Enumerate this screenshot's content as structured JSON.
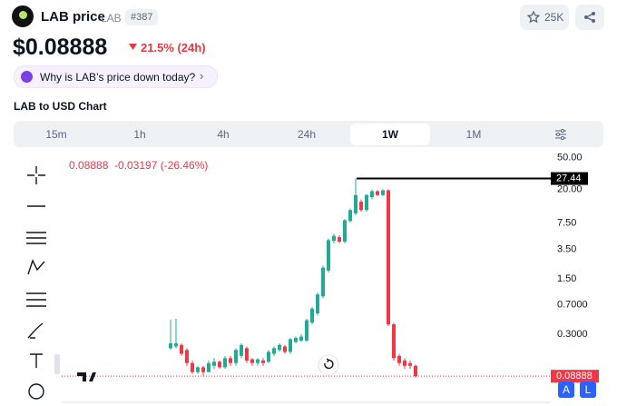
{
  "header": {
    "name": "LAB price",
    "symbol": "LAB",
    "rank": "#387",
    "watchlist": "25K"
  },
  "price": "$0.08888",
  "change": "21.5% (24h)",
  "prompt": "Why is LAB’s price down today?",
  "chart_title": "LAB to USD Chart",
  "tabs": [
    "15m",
    "1h",
    "4h",
    "24h",
    "1W",
    "1M"
  ],
  "active_tab": "1W",
  "ohlc_header": {
    "last": "0.08888",
    "change": "-0.03197 (-26.46%)"
  },
  "scale_buttons": [
    "A",
    "L"
  ],
  "chart_data": {
    "type": "candlestick",
    "log_scale": true,
    "up_color": "#22ab94",
    "down_color": "#f23645",
    "ylim": [
      0.045,
      63
    ],
    "yticks": [
      {
        "value": 50,
        "label": "50.00"
      },
      {
        "value": 20,
        "label": "20.00"
      },
      {
        "value": 7.5,
        "label": "7.50"
      },
      {
        "value": 3.5,
        "label": "3.50"
      },
      {
        "value": 1.5,
        "label": "1.50"
      },
      {
        "value": 0.7,
        "label": "0.7000"
      },
      {
        "value": 0.3,
        "label": "0.3000"
      }
    ],
    "high_marker": 27.44,
    "last_price": 0.08888,
    "categories": [
      null,
      null,
      null,
      null,
      null,
      null,
      null,
      null,
      null,
      null,
      null,
      null,
      null,
      null,
      null,
      null,
      null,
      null,
      null,
      null,
      null,
      null,
      null,
      null,
      null,
      null,
      null,
      null,
      null,
      null,
      null,
      null,
      null,
      null,
      null,
      null,
      null,
      null,
      null,
      null,
      null,
      null,
      null,
      null,
      null,
      null
    ],
    "open": [
      0.2,
      0.21,
      0.22,
      0.19,
      0.13,
      0.1,
      0.115,
      0.1,
      0.12,
      0.135,
      0.115,
      0.15,
      0.13,
      0.16,
      0.2,
      0.145,
      0.13,
      0.14,
      0.135,
      0.17,
      0.19,
      0.21,
      0.18,
      0.24,
      0.25,
      0.25,
      0.42,
      0.55,
      0.9,
      1.9,
      4.5,
      5,
      4.4,
      8,
      10,
      14,
      11,
      16,
      19,
      17,
      19.5,
      0.4,
      0.16,
      0.14,
      0.13,
      0.12
    ],
    "high": [
      0.46,
      0.47,
      0.23,
      0.2,
      0.14,
      0.12,
      0.12,
      0.14,
      0.15,
      0.14,
      0.16,
      0.16,
      0.2,
      0.23,
      0.21,
      0.15,
      0.15,
      0.15,
      0.19,
      0.21,
      0.23,
      0.22,
      0.27,
      0.28,
      0.3,
      0.47,
      0.66,
      1,
      2.2,
      4.8,
      5.5,
      5.3,
      8.5,
      11.5,
      27.44,
      15,
      17.5,
      20,
      19.5,
      20,
      20,
      0.42,
      0.17,
      0.15,
      0.14,
      0.125
    ],
    "low": [
      0.19,
      0.2,
      0.16,
      0.12,
      0.095,
      0.095,
      0.09,
      0.1,
      0.11,
      0.11,
      0.11,
      0.12,
      0.12,
      0.15,
      0.13,
      0.12,
      0.12,
      0.12,
      0.13,
      0.16,
      0.18,
      0.17,
      0.17,
      0.23,
      0.24,
      0.24,
      0.4,
      0.52,
      0.85,
      1.8,
      4.2,
      4.2,
      4.2,
      7.6,
      9.5,
      10.5,
      10.5,
      15,
      16.5,
      16.5,
      0.38,
      0.14,
      0.12,
      0.11,
      0.11,
      0.085
    ],
    "close": [
      0.23,
      0.23,
      0.17,
      0.13,
      0.1,
      0.115,
      0.1,
      0.13,
      0.135,
      0.115,
      0.15,
      0.13,
      0.19,
      0.22,
      0.14,
      0.13,
      0.145,
      0.13,
      0.18,
      0.2,
      0.22,
      0.18,
      0.26,
      0.27,
      0.28,
      0.45,
      0.63,
      0.95,
      2.07,
      4.6,
      5.2,
      4.4,
      8.2,
      11,
      17,
      11,
      17,
      19,
      17,
      19.5,
      0.4,
      0.15,
      0.13,
      0.12,
      0.12,
      0.08888
    ]
  }
}
